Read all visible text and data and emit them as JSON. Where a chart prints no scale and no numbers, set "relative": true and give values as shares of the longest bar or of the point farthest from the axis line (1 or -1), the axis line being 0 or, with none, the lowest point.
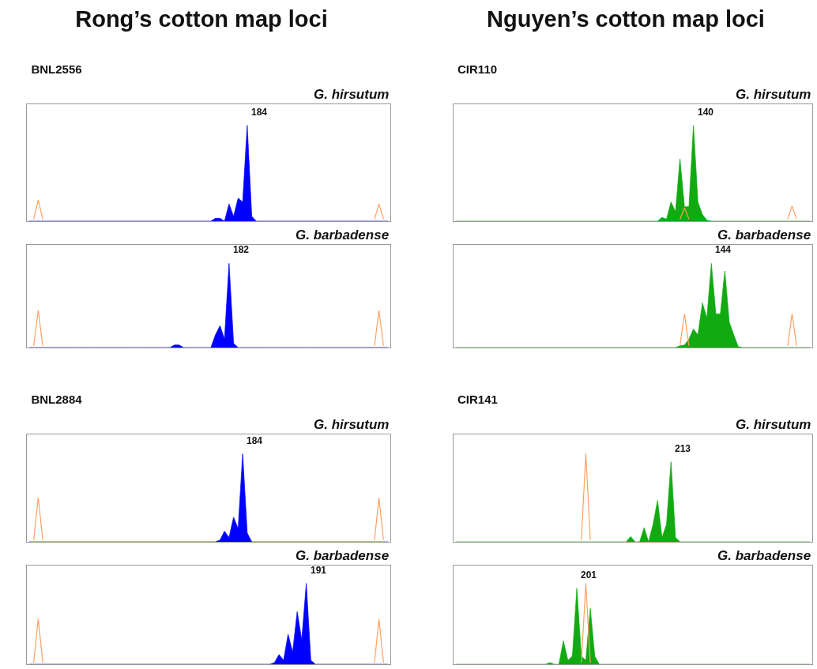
{
  "chart_data": [
    {
      "type": "area",
      "relative": true,
      "title": "Rong’s cotton map loci",
      "subtitle": "BNL2556",
      "annotations": [
        "G. hirsutum",
        "184"
      ],
      "categories": [
        null,
        null,
        null,
        null,
        null,
        null,
        null,
        null,
        null,
        null,
        null,
        null,
        null,
        null,
        null,
        null,
        null,
        null,
        null,
        null,
        null,
        null,
        null,
        null,
        null,
        null,
        null,
        null,
        null,
        null,
        null,
        null,
        null,
        null,
        null,
        null,
        null,
        null,
        null,
        null,
        null,
        null,
        null,
        null,
        null,
        null,
        null,
        null,
        null,
        null,
        null,
        null,
        null,
        null,
        null,
        null,
        null,
        null,
        null,
        null,
        null,
        null,
        null,
        null,
        null,
        null,
        null,
        null,
        null,
        null,
        null,
        null,
        null,
        null,
        null,
        null,
        null,
        null,
        null,
        null
      ],
      "series": [
        {
          "color": "#0000ff",
          "values": [
            0,
            0,
            0,
            0,
            0,
            0,
            0,
            0,
            0,
            0,
            0,
            0,
            0,
            0,
            0,
            0,
            0,
            0,
            0,
            0,
            0,
            0,
            0,
            0,
            0,
            0,
            0,
            0,
            0,
            0,
            0,
            0,
            0,
            0,
            0,
            0,
            0,
            0,
            0,
            0,
            0,
            0.03,
            0.03,
            0,
            0.18,
            0.05,
            0.24,
            0.2,
            1,
            0.05,
            0,
            0,
            0,
            0,
            0,
            0,
            0,
            0,
            0,
            0,
            0,
            0,
            0,
            0,
            0,
            0,
            0,
            0,
            0,
            0,
            0,
            0,
            0,
            0,
            0,
            0,
            0,
            0,
            0,
            0
          ]
        },
        {
          "type": "line",
          "color": "#ffa060",
          "values": [
            null,
            0.02,
            0.22,
            0.02,
            null,
            null,
            null,
            null,
            null,
            null,
            null,
            null,
            null,
            null,
            null,
            null,
            null,
            null,
            null,
            null,
            null,
            null,
            null,
            null,
            null,
            null,
            null,
            null,
            null,
            null,
            null,
            null,
            null,
            null,
            null,
            null,
            null,
            null,
            null,
            null,
            null,
            null,
            null,
            null,
            null,
            null,
            null,
            null,
            null,
            null,
            null,
            null,
            null,
            null,
            null,
            null,
            null,
            null,
            null,
            null,
            null,
            null,
            null,
            null,
            null,
            null,
            null,
            null,
            null,
            null,
            null,
            null,
            null,
            null,
            null,
            null,
            0.02,
            0.18,
            0.02,
            null
          ]
        }
      ]
    },
    {
      "type": "area",
      "relative": true,
      "annotations": [
        "G. barbadense",
        "182"
      ],
      "categories": [
        null,
        null,
        null,
        null,
        null,
        null,
        null,
        null,
        null,
        null,
        null,
        null,
        null,
        null,
        null,
        null,
        null,
        null,
        null,
        null,
        null,
        null,
        null,
        null,
        null,
        null,
        null,
        null,
        null,
        null,
        null,
        null,
        null,
        null,
        null,
        null,
        null,
        null,
        null,
        null,
        null,
        null,
        null,
        null,
        null,
        null,
        null,
        null,
        null,
        null,
        null,
        null,
        null,
        null,
        null,
        null,
        null,
        null,
        null,
        null,
        null,
        null,
        null,
        null,
        null,
        null,
        null,
        null,
        null,
        null,
        null,
        null,
        null,
        null,
        null,
        null,
        null,
        null,
        null,
        null
      ],
      "series": [
        {
          "color": "#0000ff",
          "values": [
            0,
            0,
            0,
            0,
            0,
            0,
            0,
            0,
            0,
            0,
            0,
            0,
            0,
            0,
            0,
            0,
            0,
            0,
            0,
            0,
            0,
            0,
            0,
            0,
            0,
            0,
            0,
            0,
            0,
            0,
            0,
            0,
            0.03,
            0.03,
            0,
            0,
            0,
            0,
            0,
            0,
            0,
            0.15,
            0.26,
            0.1,
            1,
            0.05,
            0,
            0,
            0,
            0,
            0,
            0,
            0,
            0,
            0,
            0,
            0,
            0,
            0,
            0,
            0,
            0,
            0,
            0,
            0,
            0,
            0,
            0,
            0,
            0,
            0,
            0,
            0,
            0,
            0,
            0,
            0,
            0,
            0,
            0
          ]
        },
        {
          "type": "line",
          "color": "#ffa060",
          "values": [
            null,
            0.02,
            0.44,
            0.02,
            null,
            null,
            null,
            null,
            null,
            null,
            null,
            null,
            null,
            null,
            null,
            null,
            null,
            null,
            null,
            null,
            null,
            null,
            null,
            null,
            null,
            null,
            null,
            null,
            null,
            null,
            null,
            null,
            null,
            null,
            null,
            null,
            null,
            null,
            null,
            null,
            null,
            null,
            null,
            null,
            null,
            null,
            null,
            null,
            null,
            null,
            null,
            null,
            null,
            null,
            null,
            null,
            null,
            null,
            null,
            null,
            null,
            null,
            null,
            null,
            null,
            null,
            null,
            null,
            null,
            null,
            null,
            null,
            null,
            null,
            null,
            null,
            0.02,
            0.44,
            0.02,
            null
          ]
        }
      ]
    },
    {
      "type": "area",
      "relative": true,
      "title": "Nguyen’s cotton map loci",
      "subtitle": "CIR110",
      "annotations": [
        "G. hirsutum",
        "140"
      ],
      "categories": [
        null,
        null,
        null,
        null,
        null,
        null,
        null,
        null,
        null,
        null,
        null,
        null,
        null,
        null,
        null,
        null,
        null,
        null,
        null,
        null,
        null,
        null,
        null,
        null,
        null,
        null,
        null,
        null,
        null,
        null,
        null,
        null,
        null,
        null,
        null,
        null,
        null,
        null,
        null,
        null,
        null,
        null,
        null,
        null,
        null,
        null,
        null,
        null,
        null,
        null,
        null,
        null,
        null,
        null,
        null,
        null,
        null,
        null,
        null,
        null,
        null,
        null,
        null,
        null,
        null,
        null,
        null,
        null,
        null,
        null,
        null,
        null,
        null,
        null,
        null,
        null,
        null,
        null,
        null,
        null
      ],
      "series": [
        {
          "color": "#11aa11",
          "values": [
            0,
            0,
            0,
            0,
            0,
            0,
            0,
            0,
            0,
            0,
            0,
            0,
            0,
            0,
            0,
            0,
            0,
            0,
            0,
            0,
            0,
            0,
            0,
            0,
            0,
            0,
            0,
            0,
            0,
            0,
            0,
            0,
            0,
            0,
            0,
            0,
            0,
            0,
            0,
            0,
            0,
            0,
            0,
            0,
            0,
            0,
            0.04,
            0.02,
            0.2,
            0.1,
            0.65,
            0.15,
            0.15,
            1,
            0.2,
            0.07,
            0.01,
            0,
            0,
            0,
            0,
            0,
            0,
            0,
            0,
            0,
            0,
            0,
            0,
            0,
            0,
            0,
            0,
            0,
            0,
            0,
            0,
            0,
            0,
            0
          ]
        },
        {
          "type": "line",
          "color": "#ffa060",
          "values": [
            null,
            null,
            null,
            null,
            null,
            null,
            null,
            null,
            null,
            null,
            null,
            null,
            null,
            null,
            null,
            null,
            null,
            null,
            null,
            null,
            null,
            null,
            null,
            null,
            null,
            null,
            null,
            null,
            null,
            null,
            null,
            null,
            null,
            null,
            null,
            null,
            null,
            null,
            null,
            null,
            null,
            null,
            null,
            null,
            null,
            null,
            null,
            null,
            null,
            null,
            0.02,
            0.14,
            0.02,
            null,
            null,
            null,
            null,
            null,
            null,
            null,
            null,
            null,
            null,
            null,
            null,
            null,
            null,
            null,
            null,
            null,
            null,
            null,
            null,
            null,
            0.02,
            0.16,
            0.02,
            null,
            null,
            null
          ]
        }
      ]
    },
    {
      "type": "area",
      "relative": true,
      "annotations": [
        "G. barbadense",
        "144"
      ],
      "categories": [
        null,
        null,
        null,
        null,
        null,
        null,
        null,
        null,
        null,
        null,
        null,
        null,
        null,
        null,
        null,
        null,
        null,
        null,
        null,
        null,
        null,
        null,
        null,
        null,
        null,
        null,
        null,
        null,
        null,
        null,
        null,
        null,
        null,
        null,
        null,
        null,
        null,
        null,
        null,
        null,
        null,
        null,
        null,
        null,
        null,
        null,
        null,
        null,
        null,
        null,
        null,
        null,
        null,
        null,
        null,
        null,
        null,
        null,
        null,
        null,
        null,
        null,
        null,
        null,
        null,
        null,
        null,
        null,
        null,
        null,
        null,
        null,
        null,
        null,
        null,
        null,
        null,
        null,
        null,
        null
      ],
      "series": [
        {
          "color": "#11aa11",
          "values": [
            0,
            0,
            0,
            0,
            0,
            0,
            0,
            0,
            0,
            0,
            0,
            0,
            0,
            0,
            0,
            0,
            0,
            0,
            0,
            0,
            0,
            0,
            0,
            0,
            0,
            0,
            0,
            0,
            0,
            0,
            0,
            0,
            0,
            0,
            0,
            0,
            0,
            0,
            0,
            0,
            0,
            0,
            0,
            0,
            0,
            0,
            0,
            0,
            0,
            0,
            0.02,
            0.03,
            0.1,
            0.22,
            0.15,
            0.53,
            0.35,
            1,
            0.4,
            0.4,
            0.91,
            0.3,
            0.15,
            0.01,
            0,
            0,
            0,
            0,
            0,
            0,
            0,
            0,
            0,
            0,
            0,
            0,
            0,
            0,
            0,
            0
          ]
        },
        {
          "type": "line",
          "color": "#ffa060",
          "values": [
            null,
            null,
            null,
            null,
            null,
            null,
            null,
            null,
            null,
            null,
            null,
            null,
            null,
            null,
            null,
            null,
            null,
            null,
            null,
            null,
            null,
            null,
            null,
            null,
            null,
            null,
            null,
            null,
            null,
            null,
            null,
            null,
            null,
            null,
            null,
            null,
            null,
            null,
            null,
            null,
            null,
            null,
            null,
            null,
            null,
            null,
            null,
            null,
            null,
            null,
            0.02,
            0.4,
            0.02,
            null,
            null,
            null,
            null,
            null,
            null,
            null,
            null,
            null,
            null,
            null,
            null,
            null,
            null,
            null,
            null,
            null,
            null,
            null,
            null,
            null,
            0.02,
            0.4,
            0.02,
            null,
            null,
            null
          ]
        }
      ]
    },
    {
      "type": "area",
      "relative": true,
      "subtitle": "BNL2884",
      "annotations": [
        "G. hirsutum",
        "184"
      ],
      "categories": [
        null,
        null,
        null,
        null,
        null,
        null,
        null,
        null,
        null,
        null,
        null,
        null,
        null,
        null,
        null,
        null,
        null,
        null,
        null,
        null,
        null,
        null,
        null,
        null,
        null,
        null,
        null,
        null,
        null,
        null,
        null,
        null,
        null,
        null,
        null,
        null,
        null,
        null,
        null,
        null,
        null,
        null,
        null,
        null,
        null,
        null,
        null,
        null,
        null,
        null,
        null,
        null,
        null,
        null,
        null,
        null,
        null,
        null,
        null,
        null,
        null,
        null,
        null,
        null,
        null,
        null,
        null,
        null,
        null,
        null,
        null,
        null,
        null,
        null,
        null,
        null,
        null,
        null,
        null,
        null
      ],
      "series": [
        {
          "color": "#0000ff",
          "values": [
            0,
            0,
            0,
            0,
            0,
            0,
            0,
            0,
            0,
            0,
            0,
            0,
            0,
            0,
            0,
            0,
            0,
            0,
            0,
            0,
            0,
            0,
            0,
            0,
            0,
            0,
            0,
            0,
            0,
            0,
            0,
            0,
            0,
            0,
            0,
            0,
            0,
            0,
            0,
            0,
            0,
            0,
            0.02,
            0.12,
            0.05,
            0.28,
            0.15,
            1,
            0.1,
            0,
            0,
            0,
            0,
            0,
            0,
            0,
            0,
            0,
            0,
            0,
            0,
            0,
            0,
            0,
            0,
            0,
            0,
            0,
            0,
            0,
            0,
            0,
            0,
            0,
            0,
            0,
            0,
            0,
            0,
            0
          ]
        },
        {
          "type": "line",
          "color": "#ffa060",
          "values": [
            null,
            0.02,
            0.5,
            0.02,
            null,
            null,
            null,
            null,
            null,
            null,
            null,
            null,
            null,
            null,
            null,
            null,
            null,
            null,
            null,
            null,
            null,
            null,
            null,
            null,
            null,
            null,
            null,
            null,
            null,
            null,
            null,
            null,
            null,
            null,
            null,
            null,
            null,
            null,
            null,
            null,
            null,
            null,
            null,
            null,
            null,
            null,
            null,
            null,
            null,
            null,
            null,
            null,
            null,
            null,
            null,
            null,
            null,
            null,
            null,
            null,
            null,
            null,
            null,
            null,
            null,
            null,
            null,
            null,
            null,
            null,
            null,
            null,
            null,
            null,
            null,
            null,
            0.02,
            0.5,
            0.02,
            null
          ]
        }
      ]
    },
    {
      "type": "area",
      "relative": true,
      "annotations": [
        "G. barbadense",
        "191"
      ],
      "categories": [
        null,
        null,
        null,
        null,
        null,
        null,
        null,
        null,
        null,
        null,
        null,
        null,
        null,
        null,
        null,
        null,
        null,
        null,
        null,
        null,
        null,
        null,
        null,
        null,
        null,
        null,
        null,
        null,
        null,
        null,
        null,
        null,
        null,
        null,
        null,
        null,
        null,
        null,
        null,
        null,
        null,
        null,
        null,
        null,
        null,
        null,
        null,
        null,
        null,
        null,
        null,
        null,
        null,
        null,
        null,
        null,
        null,
        null,
        null,
        null,
        null,
        null,
        null,
        null,
        null,
        null,
        null,
        null,
        null,
        null,
        null,
        null,
        null,
        null,
        null,
        null,
        null,
        null,
        null,
        null
      ],
      "series": [
        {
          "color": "#0000ff",
          "values": [
            0,
            0,
            0,
            0,
            0,
            0,
            0,
            0,
            0,
            0,
            0,
            0,
            0,
            0,
            0,
            0,
            0,
            0,
            0,
            0,
            0,
            0,
            0,
            0,
            0,
            0,
            0,
            0,
            0,
            0,
            0,
            0,
            0,
            0,
            0,
            0,
            0,
            0,
            0,
            0,
            0,
            0,
            0,
            0,
            0,
            0,
            0,
            0,
            0,
            0,
            0,
            0,
            0,
            0,
            0.02,
            0.12,
            0.05,
            0.37,
            0.15,
            0.65,
            0.3,
            1,
            0.05,
            0,
            0,
            0,
            0,
            0,
            0,
            0,
            0,
            0,
            0,
            0,
            0,
            0,
            0,
            0,
            0,
            0
          ]
        },
        {
          "type": "line",
          "color": "#ffa060",
          "values": [
            null,
            0.02,
            0.56,
            0.02,
            null,
            null,
            null,
            null,
            null,
            null,
            null,
            null,
            null,
            null,
            null,
            null,
            null,
            null,
            null,
            null,
            null,
            null,
            null,
            null,
            null,
            null,
            null,
            null,
            null,
            null,
            null,
            null,
            null,
            null,
            null,
            null,
            null,
            null,
            null,
            null,
            null,
            null,
            null,
            null,
            null,
            null,
            null,
            null,
            null,
            null,
            null,
            null,
            null,
            null,
            null,
            null,
            null,
            null,
            null,
            null,
            null,
            null,
            null,
            null,
            null,
            null,
            null,
            null,
            null,
            null,
            null,
            null,
            null,
            null,
            null,
            null,
            0.02,
            0.56,
            0.02,
            null
          ]
        }
      ]
    },
    {
      "type": "area",
      "relative": true,
      "subtitle": "CIR141",
      "annotations": [
        "G. hirsutum",
        "213"
      ],
      "categories": [
        null,
        null,
        null,
        null,
        null,
        null,
        null,
        null,
        null,
        null,
        null,
        null,
        null,
        null,
        null,
        null,
        null,
        null,
        null,
        null,
        null,
        null,
        null,
        null,
        null,
        null,
        null,
        null,
        null,
        null,
        null,
        null,
        null,
        null,
        null,
        null,
        null,
        null,
        null,
        null,
        null,
        null,
        null,
        null,
        null,
        null,
        null,
        null,
        null,
        null,
        null,
        null,
        null,
        null,
        null,
        null,
        null,
        null,
        null,
        null,
        null,
        null,
        null,
        null,
        null,
        null,
        null,
        null,
        null,
        null,
        null,
        null,
        null,
        null,
        null,
        null,
        null,
        null,
        null,
        null
      ],
      "series": [
        {
          "color": "#11aa11",
          "values": [
            0,
            0,
            0,
            0,
            0,
            0,
            0,
            0,
            0,
            0,
            0,
            0,
            0,
            0,
            0,
            0,
            0,
            0,
            0,
            0,
            0,
            0,
            0,
            0,
            0,
            0,
            0,
            0,
            0,
            0,
            0,
            0,
            0,
            0,
            0,
            0,
            0,
            0,
            0,
            0.06,
            0,
            0,
            0.16,
            0,
            0.2,
            0.47,
            0.05,
            0.2,
            0.91,
            0.05,
            0,
            0,
            0,
            0,
            0,
            0,
            0,
            0,
            0,
            0,
            0,
            0,
            0,
            0,
            0,
            0,
            0,
            0,
            0,
            0,
            0,
            0,
            0,
            0,
            0,
            0,
            0,
            0,
            0,
            0
          ]
        },
        {
          "type": "line",
          "color": "#ffa060",
          "values": [
            null,
            null,
            null,
            null,
            null,
            null,
            null,
            null,
            null,
            null,
            null,
            null,
            null,
            null,
            null,
            null,
            null,
            null,
            null,
            null,
            null,
            null,
            null,
            null,
            null,
            null,
            null,
            null,
            0.02,
            1,
            0.02,
            null,
            null,
            null,
            null,
            null,
            null,
            null,
            null,
            null,
            null,
            null,
            null,
            null,
            null,
            null,
            null,
            null,
            null,
            null,
            null,
            null,
            null,
            null,
            null,
            null,
            null,
            null,
            null,
            null,
            null,
            null,
            null,
            null,
            null,
            null,
            null,
            null,
            null,
            null,
            null,
            null,
            null,
            null,
            null,
            null,
            null,
            null,
            null,
            null
          ]
        }
      ]
    },
    {
      "type": "area",
      "relative": true,
      "annotations": [
        "G. barbadense",
        "201"
      ],
      "categories": [
        null,
        null,
        null,
        null,
        null,
        null,
        null,
        null,
        null,
        null,
        null,
        null,
        null,
        null,
        null,
        null,
        null,
        null,
        null,
        null,
        null,
        null,
        null,
        null,
        null,
        null,
        null,
        null,
        null,
        null,
        null,
        null,
        null,
        null,
        null,
        null,
        null,
        null,
        null,
        null,
        null,
        null,
        null,
        null,
        null,
        null,
        null,
        null,
        null,
        null,
        null,
        null,
        null,
        null,
        null,
        null,
        null,
        null,
        null,
        null,
        null,
        null,
        null,
        null,
        null,
        null,
        null,
        null,
        null,
        null,
        null,
        null,
        null,
        null,
        null,
        null,
        null,
        null,
        null,
        null
      ],
      "series": [
        {
          "color": "#11aa11",
          "values": [
            0,
            0,
            0,
            0,
            0,
            0,
            0,
            0,
            0,
            0,
            0,
            0,
            0,
            0,
            0,
            0,
            0,
            0,
            0,
            0,
            0,
            0.02,
            0,
            0,
            0.29,
            0.05,
            0.1,
            0.94,
            0.1,
            0.05,
            0.69,
            0.1,
            0,
            0,
            0,
            0,
            0,
            0,
            0,
            0,
            0,
            0,
            0,
            0,
            0,
            0,
            0,
            0,
            0,
            0,
            0,
            0,
            0,
            0,
            0,
            0,
            0,
            0,
            0,
            0,
            0,
            0,
            0,
            0,
            0,
            0,
            0,
            0,
            0,
            0,
            0,
            0,
            0,
            0,
            0,
            0,
            0,
            0,
            0,
            0
          ]
        },
        {
          "type": "line",
          "color": "#ffa060",
          "values": [
            null,
            null,
            null,
            null,
            null,
            null,
            null,
            null,
            null,
            null,
            null,
            null,
            null,
            null,
            null,
            null,
            null,
            null,
            null,
            null,
            null,
            null,
            null,
            null,
            null,
            null,
            null,
            null,
            0.02,
            1,
            0.02,
            null,
            null,
            null,
            null,
            null,
            null,
            null,
            null,
            null,
            null,
            null,
            null,
            null,
            null,
            null,
            null,
            null,
            null,
            null,
            null,
            null,
            null,
            null,
            null,
            null,
            null,
            null,
            null,
            null,
            null,
            null,
            null,
            null,
            null,
            null,
            null,
            null,
            null,
            null,
            null,
            null,
            null,
            null,
            null,
            null,
            null,
            null,
            null,
            null
          ]
        }
      ]
    }
  ]
}
